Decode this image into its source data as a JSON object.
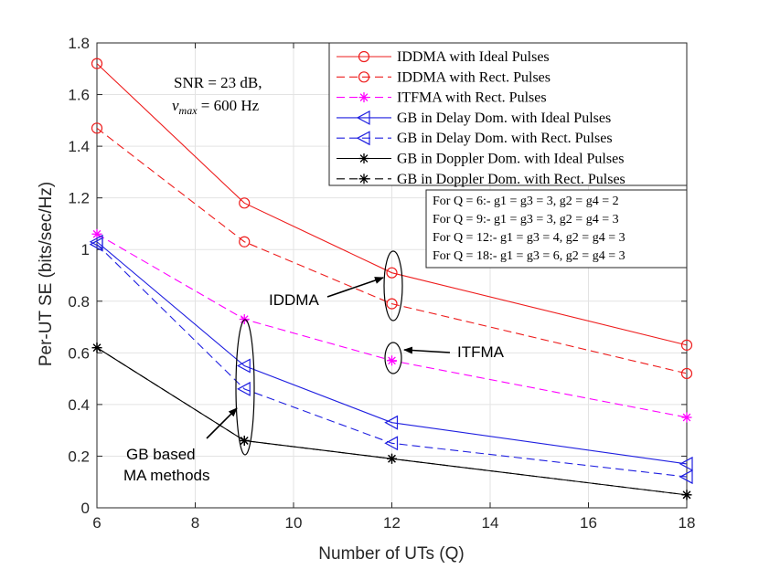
{
  "chart_data": {
    "type": "line",
    "xlabel": "Number of UTs (Q)",
    "ylabel": "Per-UT SE (bits/sec/Hz)",
    "xlim": [
      6,
      18
    ],
    "ylim": [
      0,
      1.8
    ],
    "xticks": [
      "6",
      "8",
      "10",
      "12",
      "14",
      "16",
      "18"
    ],
    "yticks": [
      "0",
      "0.2",
      "0.4",
      "0.6",
      "0.8",
      "1",
      "1.2",
      "1.4",
      "1.6",
      "1.8"
    ],
    "grid": true,
    "legend_position": "top-right",
    "x": [
      6,
      9,
      12,
      18
    ],
    "series": [
      {
        "name": "IDDMA with Ideal Pulses",
        "values": [
          1.72,
          1.18,
          0.91,
          0.63
        ],
        "color": "#ee1c1c",
        "dash": "solid",
        "marker": "circle"
      },
      {
        "name": "IDDMA with Rect. Pulses",
        "values": [
          1.47,
          1.03,
          0.79,
          0.52
        ],
        "color": "#ee1c1c",
        "dash": "dashed",
        "marker": "circle"
      },
      {
        "name": "ITFMA with Rect. Pulses",
        "values": [
          1.06,
          0.73,
          0.57,
          0.35
        ],
        "color": "#ff00ff",
        "dash": "dashed",
        "marker": "star"
      },
      {
        "name": "GB in Delay Dom. with Ideal Pulses",
        "values": [
          1.03,
          0.55,
          0.33,
          0.17
        ],
        "color": "#1f1fe0",
        "dash": "solid",
        "marker": "triangle-left"
      },
      {
        "name": "GB in Delay Dom. with Rect. Pulses",
        "values": [
          1.02,
          0.46,
          0.25,
          0.12
        ],
        "color": "#1f1fe0",
        "dash": "dashed",
        "marker": "triangle-left"
      },
      {
        "name": "GB in Doppler Dom. with Ideal Pulses",
        "values": [
          0.62,
          0.26,
          0.19,
          0.05
        ],
        "color": "#000000",
        "dash": "solid",
        "marker": "star"
      },
      {
        "name": "GB in Doppler Dom. with Rect. Pulses",
        "values": [
          0.62,
          0.26,
          0.19,
          0.05
        ],
        "color": "#000000",
        "dash": "dashed",
        "marker": "star"
      }
    ],
    "snr_line": "SNR = 23 dB,",
    "nu_line": {
      "symbol": "ν",
      "sub": "max",
      "rest": " = 600 Hz"
    },
    "notes": [
      "For Q = 6:- g1 = g3 = 3, g2 = g4 = 2",
      "For Q = 9:- g1 = g3 = 3, g2 = g4 = 3",
      "For Q = 12:- g1 = g3 = 4, g2 = g4 = 3",
      "For Q = 18:- g1 = g3 = 6, g2 = g4 = 3"
    ],
    "annotations": {
      "iddma": "IDDMA",
      "itfma": "ITFMA",
      "gb_line1": "GB based",
      "gb_line2": "MA methods"
    }
  }
}
